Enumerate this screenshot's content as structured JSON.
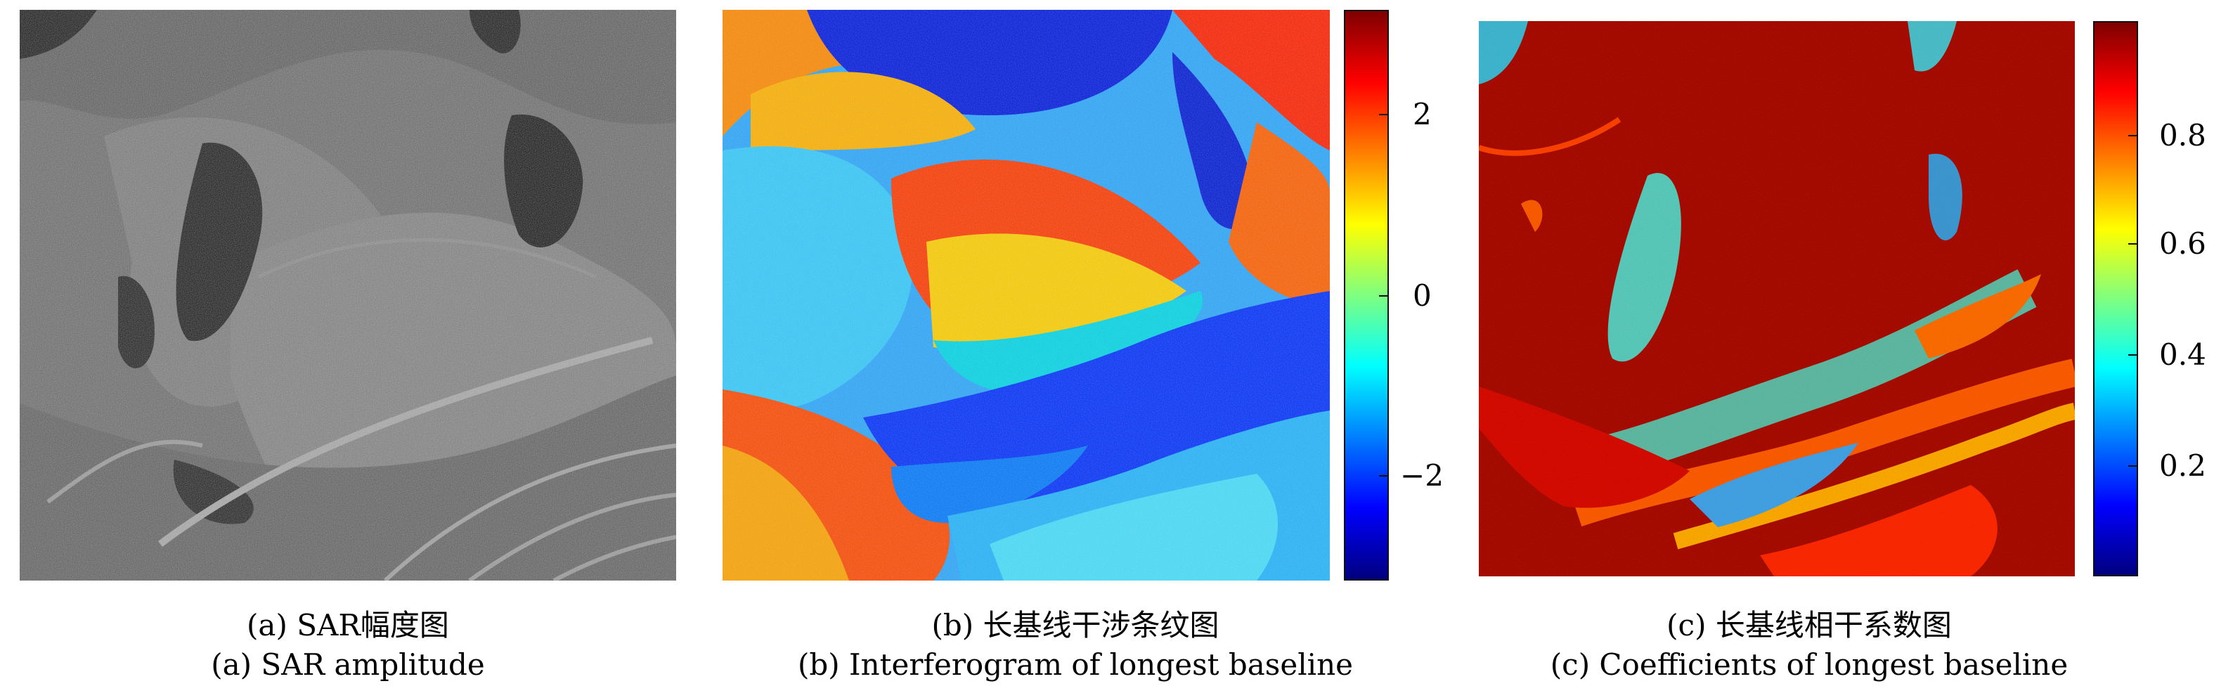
{
  "panels": [
    {
      "id": "a",
      "caption_zh": "(a) SAR幅度图",
      "caption_en": "(a) SAR amplitude",
      "colorbar": null
    },
    {
      "id": "b",
      "caption_zh": "(b) 长基线干涉条纹图",
      "caption_en": "(b) Interferogram of longest baseline",
      "colorbar": {
        "colormap": "jet",
        "ticks": [
          "2",
          "0",
          "−2"
        ]
      }
    },
    {
      "id": "c",
      "caption_zh": "(c) 长基线相干系数图",
      "caption_en": "(c) Coefficients of longest baseline",
      "colorbar": {
        "colormap": "jet",
        "ticks": [
          "0.8",
          "0.6",
          "0.4",
          "0.2"
        ]
      }
    }
  ],
  "colors": {
    "jet_stops": [
      "#00007f",
      "#0000ff",
      "#007fff",
      "#00ffff",
      "#7fff7f",
      "#ffff00",
      "#ff7f00",
      "#ff0000",
      "#7f0000"
    ]
  }
}
